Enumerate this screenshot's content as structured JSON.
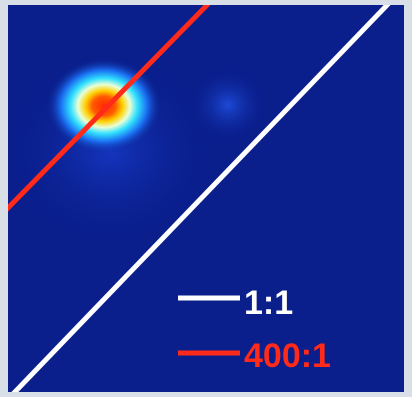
{
  "legend": {
    "items": [
      {
        "label": "1:1"
      },
      {
        "label": "400:1"
      }
    ]
  }
}
